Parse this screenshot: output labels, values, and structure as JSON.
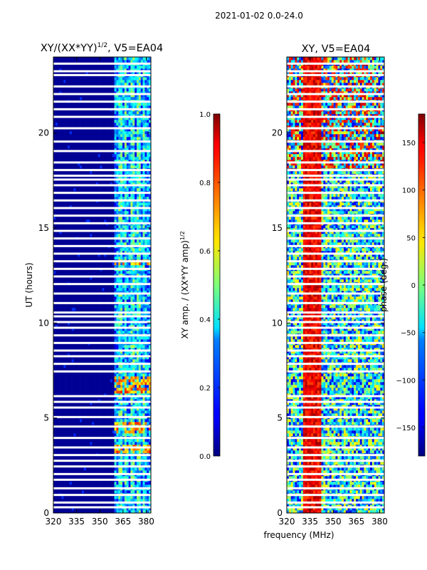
{
  "suptitle": "2021-01-02 0.0-24.0",
  "shared": {
    "ylabel": "UT (hours)",
    "xlabel": "frequency (MHz)"
  },
  "colors": {
    "masked": "#ffffff",
    "frame": "#000000"
  },
  "chart_data": [
    {
      "type": "heatmap",
      "name": "amplitude-ratio",
      "title_prefix": "XY/(XX*YY)",
      "title_sup": "1/2",
      "title_suffix": ", V5=EA04",
      "xlim": [
        320,
        383
      ],
      "ylim": [
        0,
        24
      ],
      "xticks": [
        320,
        335,
        350,
        365,
        380
      ],
      "yticks": [
        0,
        5,
        10,
        15,
        20
      ],
      "colorbar": {
        "label_main": "XY amp. / (XX*YY amp)",
        "label_sup": "1/2",
        "range": [
          0.0,
          1.0
        ],
        "ticks": [
          0.0,
          0.2,
          0.4,
          0.6,
          0.8,
          1.0
        ],
        "tick_labels": [
          "0.0",
          "0.2",
          "0.4",
          "0.6",
          "0.8",
          "1.0"
        ],
        "colormap": "jet"
      },
      "structure": {
        "low_band_mhz": [
          320,
          360
        ],
        "low_band_value": 0.02,
        "high_band_mhz": [
          360,
          383
        ],
        "high_band_value_range": [
          0.1,
          0.45
        ],
        "hot_rows_ut": [
          [
            6.3,
            7.2
          ],
          [
            4.2,
            4.8
          ],
          [
            3.2,
            3.6
          ],
          [
            13.0,
            13.4
          ]
        ],
        "hot_value": 0.85,
        "bright_channels_mhz": [
          363.5,
          366.5,
          371.5,
          375.5,
          378.5
        ]
      }
    },
    {
      "type": "heatmap",
      "name": "phase",
      "title": "XY, V5=EA04",
      "xlim": [
        320,
        383
      ],
      "ylim": [
        0,
        24
      ],
      "xticks": [
        320,
        335,
        350,
        365,
        380
      ],
      "yticks": [
        0,
        5,
        10,
        15,
        20
      ],
      "colorbar": {
        "label": "phase (deg.)",
        "range": [
          -180,
          180
        ],
        "ticks": [
          -150,
          -100,
          -50,
          0,
          50,
          100,
          150
        ],
        "tick_labels": [
          "−150",
          "−100",
          "−50",
          "0",
          "50",
          "100",
          "150"
        ],
        "colormap": "jet"
      },
      "structure": {
        "red_band_mhz": [
          331,
          342
        ],
        "red_band_phase_deg": 140,
        "background_phase_range_deg": [
          -150,
          60
        ]
      }
    }
  ],
  "flagged_rows_ut": [
    0.3,
    0.55,
    0.95,
    1.3,
    1.75,
    2.05,
    2.45,
    2.75,
    3.05,
    3.45,
    3.95,
    4.55,
    5.05,
    5.55,
    5.85,
    6.15,
    7.45,
    7.85,
    8.25,
    8.55,
    8.95,
    9.35,
    9.75,
    10.05,
    10.35,
    10.55,
    11.05,
    11.55,
    12.05,
    12.45,
    12.85,
    13.25,
    13.65,
    14.05,
    14.45,
    14.85,
    15.25,
    15.65,
    16.05,
    16.45,
    16.85,
    17.25,
    17.55,
    17.75,
    18.05,
    18.45,
    19.05,
    19.55,
    20.25,
    20.85,
    21.25,
    21.65,
    22.05,
    22.45,
    23.05,
    23.25,
    23.65
  ]
}
